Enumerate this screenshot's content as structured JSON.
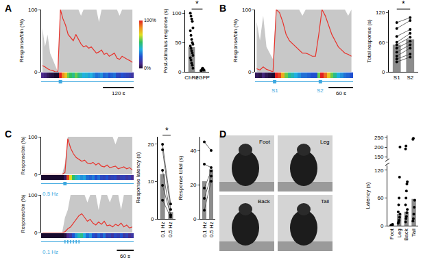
{
  "chart_data": [
    {
      "type": "line",
      "panel": "A",
      "y_label": "Response/bin (%)",
      "xlim": [
        0,
        360
      ],
      "ylim": [
        0,
        100
      ],
      "yticks": [
        0,
        100
      ],
      "tick_labels": "y",
      "color": "#e8322b",
      "envelope_color": "#c8c8c8",
      "stimulus_color": "#3fa9e0",
      "x": [
        5,
        15,
        25,
        35,
        45,
        55,
        65,
        75,
        85,
        95,
        105,
        115,
        125,
        135,
        145,
        155,
        165,
        175,
        185,
        195,
        205,
        215,
        225,
        235,
        245,
        255,
        265,
        275,
        285,
        295,
        305,
        315,
        325,
        335,
        345,
        355
      ],
      "values": [
        10,
        8,
        5,
        3,
        2,
        0,
        0,
        100,
        85,
        75,
        60,
        55,
        50,
        60,
        52,
        45,
        40,
        42,
        38,
        40,
        35,
        30,
        32,
        35,
        28,
        30,
        25,
        28,
        30,
        22,
        20,
        25,
        22,
        20,
        18,
        15
      ],
      "envelope": [
        70,
        40,
        60,
        30,
        20,
        10,
        0,
        100,
        100,
        100,
        100,
        100,
        100,
        100,
        100,
        90,
        100,
        100,
        100,
        100,
        100,
        100,
        80,
        100,
        100,
        100,
        100,
        100,
        100,
        100,
        90,
        100,
        100,
        100,
        100,
        100
      ],
      "stimuli": [
        {
          "x": 75
        }
      ],
      "scale_bar": {
        "value": 120,
        "label": "120 s"
      },
      "colorbar": {
        "range": [
          0,
          100
        ],
        "ticks": [
          {
            "value": 0,
            "label": "0%"
          },
          {
            "value": 100,
            "label": "100%"
          }
        ]
      }
    },
    {
      "type": "bar",
      "categories": [
        "ChR2",
        "eGFP"
      ],
      "values": [
        42,
        4
      ],
      "color": "#8c8c8c",
      "y_label": "Post-stimulus response (s)",
      "ylim": [
        0,
        105
      ],
      "yticks": [
        0,
        50,
        100
      ],
      "points": [
        [
          100,
          95,
          90,
          86,
          75,
          70,
          62,
          55,
          50,
          47,
          44,
          40,
          36,
          32,
          28,
          24,
          20,
          15,
          11,
          6
        ],
        [
          2,
          4,
          6,
          5,
          3
        ]
      ],
      "significance": {
        "between": [
          0,
          1
        ],
        "text": "*"
      }
    },
    {
      "type": "line",
      "panel": "B",
      "y_label": "Response/bin (%)",
      "xlim": [
        0,
        240
      ],
      "ylim": [
        0,
        100
      ],
      "yticks": [
        0,
        100
      ],
      "tick_labels": "y",
      "color": "#e8322b",
      "envelope_color": "#c8c8c8",
      "stimulus_color": "#3fa9e0",
      "x": [
        4,
        12,
        20,
        28,
        36,
        44,
        52,
        60,
        68,
        76,
        84,
        92,
        100,
        108,
        116,
        124,
        132,
        140,
        148,
        156,
        164,
        172,
        180,
        188,
        196,
        204,
        212,
        220,
        228,
        236
      ],
      "values": [
        5,
        3,
        8,
        4,
        2,
        0,
        100,
        95,
        80,
        60,
        50,
        45,
        40,
        35,
        30,
        30,
        28,
        25,
        25,
        60,
        100,
        90,
        75,
        60,
        50,
        40,
        35,
        30,
        28,
        25
      ],
      "envelope": [
        80,
        50,
        90,
        40,
        30,
        20,
        100,
        100,
        100,
        100,
        100,
        100,
        100,
        100,
        90,
        100,
        100,
        100,
        100,
        100,
        100,
        100,
        100,
        100,
        100,
        100,
        100,
        100,
        90,
        100
      ],
      "stimuli": [
        {
          "x": 48,
          "label": "S1"
        },
        {
          "x": 160,
          "label": "S2"
        }
      ],
      "scale_bar": {
        "value": 60,
        "label": "60 s"
      }
    },
    {
      "type": "bar",
      "categories": [
        "S1",
        "S2"
      ],
      "values": [
        55,
        66
      ],
      "color": "#8c8c8c",
      "y_label": "Total response (s)",
      "ylim": [
        0,
        125
      ],
      "yticks": [
        0,
        60,
        120
      ],
      "paired": true,
      "points": [
        [
          100,
          88,
          72,
          60,
          55,
          48,
          40,
          32,
          26,
          20
        ],
        [
          110,
          104,
          86,
          78,
          70,
          62,
          55,
          48,
          36,
          30
        ]
      ],
      "significance": {
        "between": [
          0,
          1
        ],
        "text": "*"
      }
    },
    {
      "type": "line",
      "panel": "C",
      "y_label": "Response/bin (%)",
      "xlim": [
        0,
        330
      ],
      "ylim": [
        0,
        100
      ],
      "yticks": [
        0,
        100
      ],
      "tick_labels": "y",
      "color": "#e8322b",
      "envelope_color": "#c8c8c8",
      "stimulus_color": "#3fa9e0",
      "x": [
        5,
        15,
        25,
        35,
        45,
        55,
        65,
        75,
        85,
        95,
        105,
        115,
        125,
        135,
        145,
        155,
        165,
        175,
        185,
        195,
        205,
        215,
        225,
        235,
        245,
        255,
        265,
        275,
        285,
        295,
        305,
        315,
        325
      ],
      "values": [
        0,
        0,
        0,
        0,
        0,
        0,
        0,
        0,
        5,
        95,
        70,
        55,
        45,
        40,
        35,
        38,
        30,
        28,
        32,
        25,
        30,
        22,
        20,
        25,
        18,
        20,
        22,
        15,
        18,
        20,
        15,
        18,
        12
      ],
      "envelope": [
        0,
        0,
        0,
        0,
        0,
        0,
        0,
        0,
        30,
        100,
        100,
        100,
        100,
        100,
        100,
        100,
        100,
        100,
        100,
        100,
        100,
        100,
        100,
        100,
        100,
        100,
        80,
        100,
        100,
        100,
        100,
        100,
        100
      ],
      "stimuli": [
        {
          "x": 81
        },
        {
          "x": 83
        },
        {
          "x": 85
        },
        {
          "x": 87
        },
        {
          "x": 89
        }
      ],
      "stim_label": "0.5 Hz"
    },
    {
      "type": "line",
      "y_label": "Response/bin (%)",
      "xlim": [
        0,
        330
      ],
      "ylim": [
        0,
        100
      ],
      "yticks": [
        0,
        100
      ],
      "tick_labels": "y",
      "color": "#e8322b",
      "envelope_color": "#c8c8c8",
      "stimulus_color": "#3fa9e0",
      "x": [
        5,
        15,
        25,
        35,
        45,
        55,
        65,
        75,
        85,
        95,
        105,
        115,
        125,
        135,
        145,
        155,
        165,
        175,
        185,
        195,
        205,
        215,
        225,
        235,
        245,
        255,
        265,
        275,
        285,
        295,
        305,
        315,
        325
      ],
      "values": [
        0,
        0,
        0,
        0,
        0,
        0,
        0,
        0,
        2,
        10,
        15,
        25,
        35,
        45,
        50,
        40,
        30,
        35,
        25,
        20,
        28,
        22,
        30,
        18,
        20,
        15,
        22,
        18,
        25,
        15,
        20,
        12,
        15
      ],
      "envelope": [
        0,
        0,
        0,
        0,
        0,
        0,
        0,
        0,
        40,
        60,
        100,
        100,
        100,
        100,
        100,
        100,
        80,
        100,
        100,
        100,
        60,
        100,
        100,
        100,
        80,
        100,
        100,
        100,
        60,
        100,
        100,
        100,
        100
      ],
      "stimuli": [
        {
          "x": 85
        },
        {
          "x": 95
        },
        {
          "x": 105
        },
        {
          "x": 115
        },
        {
          "x": 125
        },
        {
          "x": 135
        }
      ],
      "stim_label": "0.1 Hz",
      "scale_bar": {
        "value": 60,
        "label": "60 s"
      }
    },
    {
      "type": "bar",
      "categories": [
        "0.1 Hz",
        "0.5 Hz"
      ],
      "values": [
        12,
        1.8
      ],
      "color": "#8c8c8c",
      "y_label": "Response latency (s)",
      "ylim": [
        0,
        22
      ],
      "yticks": [
        0,
        10,
        20
      ],
      "paired": true,
      "points": [
        [
          20,
          18.5,
          13,
          9,
          5
        ],
        [
          4,
          2.5,
          1,
          1,
          0.5
        ]
      ],
      "significance": {
        "between": [
          0,
          1
        ],
        "text": "*"
      }
    },
    {
      "type": "bar",
      "categories": [
        "0.1 Hz",
        "0.5 Hz"
      ],
      "values": [
        22,
        29
      ],
      "color": "#8c8c8c",
      "y_label": "Response total (s)",
      "ylim": [
        0,
        48
      ],
      "yticks": [
        0,
        20,
        40
      ],
      "paired": true,
      "points": [
        [
          45,
          32,
          18,
          12,
          5
        ],
        [
          40,
          30,
          28,
          25,
          22
        ]
      ]
    },
    {
      "type": "bar",
      "categories": [
        "Foot",
        "Leg",
        "Back",
        "Tail"
      ],
      "values": [
        2,
        25,
        30,
        58
      ],
      "color": "#8c8c8c",
      "y_label": "Latency (s)",
      "ylim": [
        0,
        130
      ],
      "yticks": [
        0,
        60,
        120
      ],
      "ylim_upper": [
        140,
        260
      ],
      "yticks_upper": [
        150,
        200,
        250
      ],
      "points": [
        [
          0.5,
          1,
          2,
          1.5,
          3
        ],
        [
          5,
          8,
          12,
          18,
          25,
          30,
          45,
          60,
          105,
          200
        ],
        [
          8,
          15,
          20,
          28,
          35,
          45,
          60,
          75,
          90,
          95,
          190,
          205
        ],
        [
          10,
          15,
          25,
          40,
          55,
          240,
          245
        ]
      ]
    }
  ],
  "photos": {
    "panel": "D",
    "labels": [
      "Foot",
      "Leg",
      "Back",
      "Tail"
    ]
  }
}
